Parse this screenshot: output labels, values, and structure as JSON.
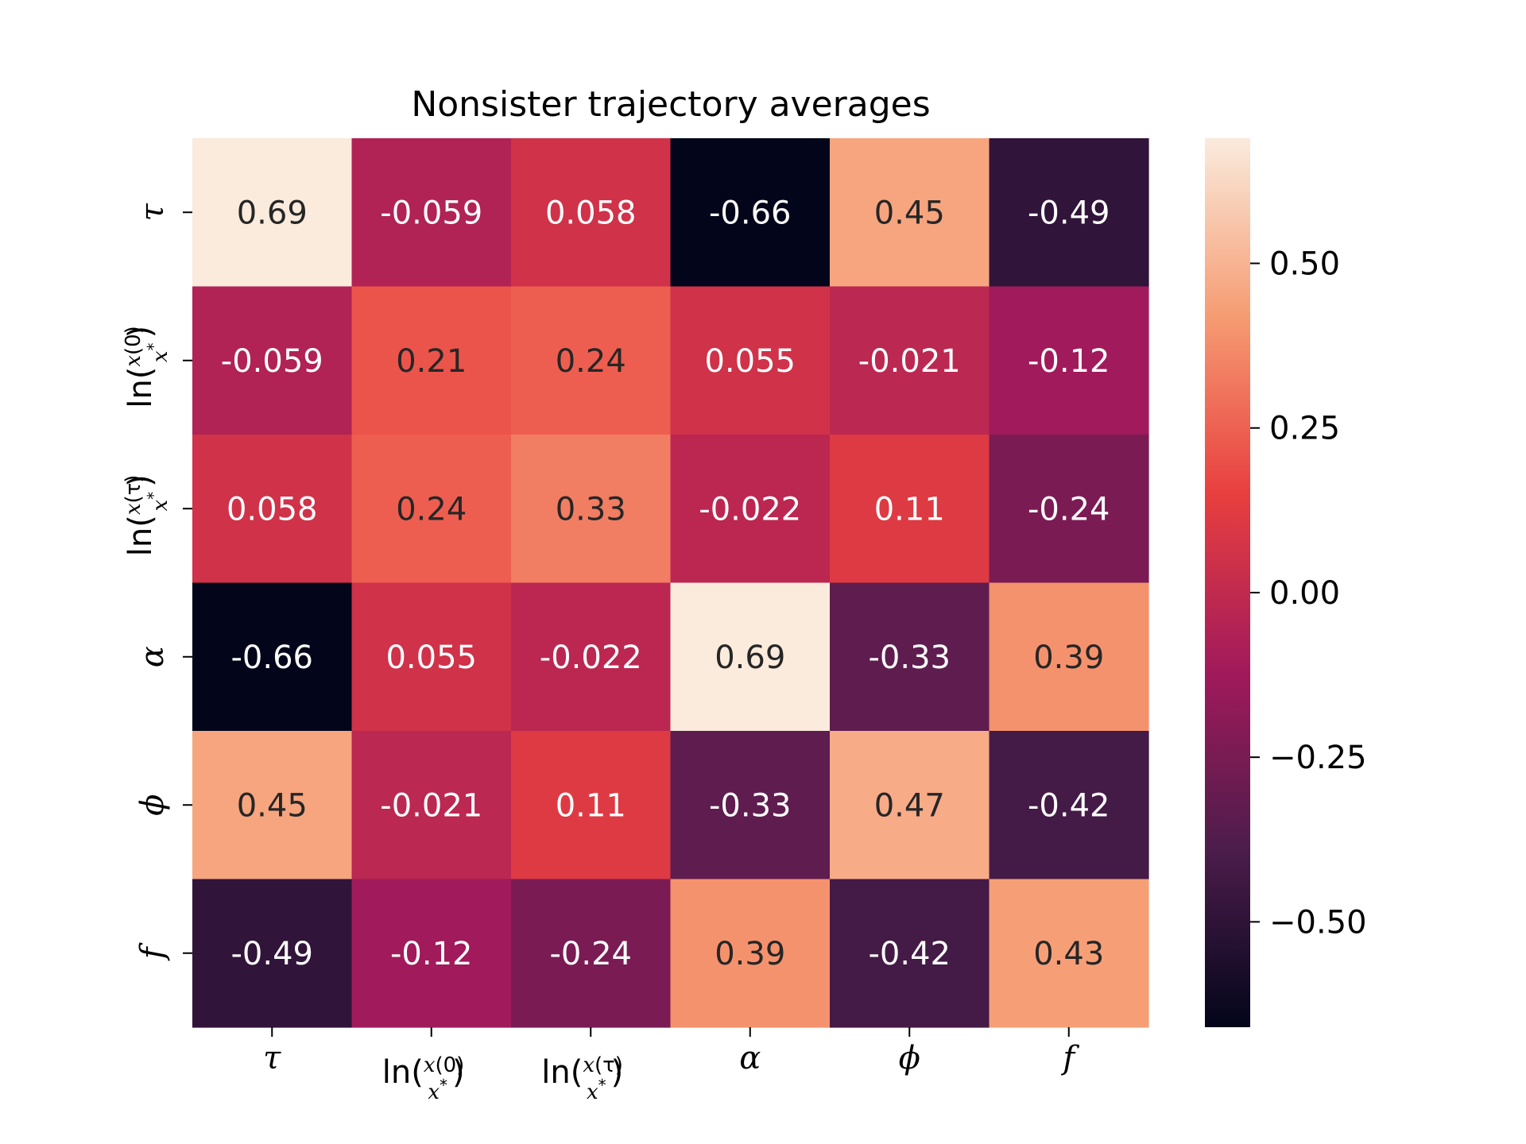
{
  "chart_data": {
    "type": "heatmap",
    "title": "Nonsister trajectory averages",
    "xlabel": "",
    "ylabel": "",
    "categories_x": [
      "τ",
      "ln(x(0)/x*)",
      "ln(x(τ)/x*)",
      "α",
      "ϕ",
      "f"
    ],
    "categories_y": [
      "τ",
      "ln(x(0)/x*)",
      "ln(x(τ)/x*)",
      "α",
      "ϕ",
      "f"
    ],
    "tick_labels": [
      {
        "kind": "symbol",
        "text": "τ"
      },
      {
        "kind": "log-ratio",
        "prefix": "ln(",
        "num_var": "x",
        "num_arg": "(0)",
        "den": "x",
        "den_sup": "*",
        "suffix": ")"
      },
      {
        "kind": "log-ratio",
        "prefix": "ln(",
        "num_var": "x",
        "num_arg": "(τ)",
        "den": "x",
        "den_sup": "*",
        "suffix": ")"
      },
      {
        "kind": "symbol",
        "text": "α"
      },
      {
        "kind": "symbol",
        "text": "ϕ"
      },
      {
        "kind": "symbol",
        "text": "f"
      }
    ],
    "values": [
      [
        0.69,
        -0.059,
        0.058,
        -0.66,
        0.45,
        -0.49
      ],
      [
        -0.059,
        0.21,
        0.24,
        0.055,
        -0.021,
        -0.12
      ],
      [
        0.058,
        0.24,
        0.33,
        -0.022,
        0.11,
        -0.24
      ],
      [
        -0.66,
        0.055,
        -0.022,
        0.69,
        -0.33,
        0.39
      ],
      [
        0.45,
        -0.021,
        0.11,
        -0.33,
        0.47,
        -0.42
      ],
      [
        -0.49,
        -0.12,
        -0.24,
        0.39,
        -0.42,
        0.43
      ]
    ],
    "value_labels": [
      [
        "0.69",
        "-0.059",
        "0.058",
        "-0.66",
        "0.45",
        "-0.49"
      ],
      [
        "-0.059",
        "0.21",
        "0.24",
        "0.055",
        "-0.021",
        "-0.12"
      ],
      [
        "0.058",
        "0.24",
        "0.33",
        "-0.022",
        "0.11",
        "-0.24"
      ],
      [
        "-0.66",
        "0.055",
        "-0.022",
        "0.69",
        "-0.33",
        "0.39"
      ],
      [
        "0.45",
        "-0.021",
        "0.11",
        "-0.33",
        "0.47",
        "-0.42"
      ],
      [
        "-0.49",
        "-0.12",
        "-0.24",
        "0.39",
        "-0.42",
        "0.43"
      ]
    ],
    "vmin": -0.66,
    "vmax": 0.69,
    "colormap": "rocket",
    "colormap_stops": [
      "#03051a",
      "#4c1d4b",
      "#a11a5b",
      "#e83f3f",
      "#f69c73",
      "#faebdd"
    ],
    "colorbar_ticks": [
      0.5,
      0.25,
      0.0,
      -0.25,
      -0.5
    ],
    "colorbar_tick_labels": [
      "0.50",
      "0.25",
      "0.00",
      "−0.25",
      "−0.50"
    ],
    "grid": false,
    "legend": "colorbar at right",
    "label_color_light": "#ffffff",
    "label_color_dark": "#262626"
  }
}
